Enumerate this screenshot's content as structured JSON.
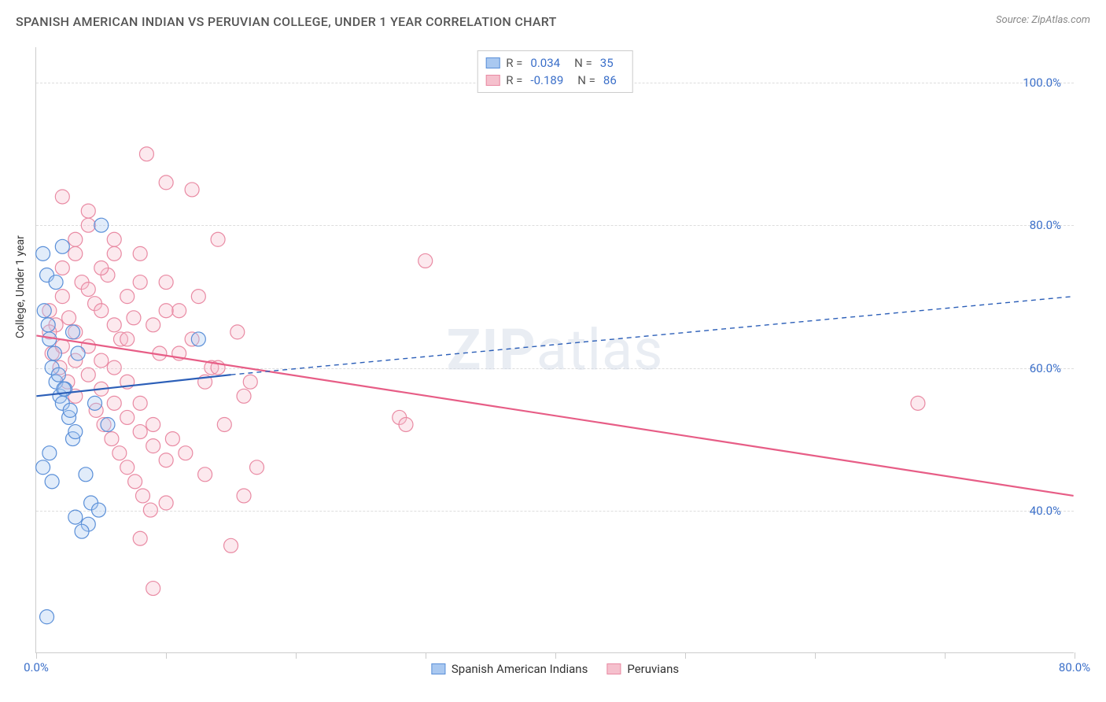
{
  "title": "SPANISH AMERICAN INDIAN VS PERUVIAN COLLEGE, UNDER 1 YEAR CORRELATION CHART",
  "source": "Source: ZipAtlas.com",
  "ylabel": "College, Under 1 year",
  "watermark_bold": "ZIP",
  "watermark_rest": "atlas",
  "chart": {
    "type": "scatter",
    "xlim": [
      0,
      80
    ],
    "ylim": [
      20,
      105
    ],
    "x_ticks": [
      0,
      10,
      20,
      30,
      40,
      50,
      60,
      70,
      80
    ],
    "x_tick_labels": [
      "0.0%",
      "",
      "",
      "",
      "",
      "",
      "",
      "",
      "80.0%"
    ],
    "y_gridlines": [
      40,
      60,
      80,
      100
    ],
    "y_tick_labels": [
      "40.0%",
      "60.0%",
      "80.0%",
      "100.0%"
    ],
    "grid_color": "#dddddd",
    "axis_color": "#cccccc",
    "background_color": "#ffffff",
    "marker_radius": 9,
    "marker_stroke_width": 1.2,
    "fill_opacity": 0.35,
    "series": [
      {
        "name": "Spanish American Indians",
        "color_fill": "#a9c8f0",
        "color_stroke": "#5a8fd8",
        "R": "0.034",
        "N": "35",
        "regression": {
          "x1": 0,
          "y1": 56,
          "x2": 15,
          "y2": 59,
          "extend_x2": 80,
          "extend_y2": 70,
          "color": "#2c5fb8",
          "width": 2.2,
          "dash_extend": "6,5"
        },
        "points": [
          [
            0.5,
            76
          ],
          [
            0.8,
            73
          ],
          [
            1.0,
            64
          ],
          [
            1.2,
            60
          ],
          [
            1.5,
            58
          ],
          [
            1.8,
            56
          ],
          [
            2.0,
            55
          ],
          [
            2.2,
            57
          ],
          [
            2.5,
            53
          ],
          [
            2.8,
            50
          ],
          [
            1.0,
            48
          ],
          [
            0.5,
            46
          ],
          [
            3.0,
            39
          ],
          [
            4.0,
            38
          ],
          [
            5.0,
            80
          ],
          [
            3.5,
            37
          ],
          [
            0.8,
            25
          ],
          [
            2.0,
            77
          ],
          [
            1.5,
            72
          ],
          [
            2.8,
            65
          ],
          [
            3.2,
            62
          ],
          [
            4.5,
            55
          ],
          [
            5.5,
            52
          ],
          [
            1.2,
            44
          ],
          [
            0.6,
            68
          ],
          [
            0.9,
            66
          ],
          [
            1.4,
            62
          ],
          [
            1.7,
            59
          ],
          [
            2.1,
            57
          ],
          [
            2.6,
            54
          ],
          [
            3.0,
            51
          ],
          [
            3.8,
            45
          ],
          [
            4.2,
            41
          ],
          [
            4.8,
            40
          ],
          [
            12.5,
            64
          ]
        ]
      },
      {
        "name": "Peruvians",
        "color_fill": "#f5c0cd",
        "color_stroke": "#e98aa3",
        "R": "-0.189",
        "N": "86",
        "regression": {
          "x1": 0,
          "y1": 64.5,
          "x2": 80,
          "y2": 42,
          "color": "#e75d86",
          "width": 2.2
        },
        "points": [
          [
            1,
            68
          ],
          [
            1.5,
            66
          ],
          [
            2,
            70
          ],
          [
            2.5,
            67
          ],
          [
            3,
            65
          ],
          [
            3.5,
            72
          ],
          [
            4,
            63
          ],
          [
            4.5,
            69
          ],
          [
            5,
            61
          ],
          [
            5.5,
            73
          ],
          [
            6,
            60
          ],
          [
            6.5,
            64
          ],
          [
            7,
            58
          ],
          [
            7.5,
            67
          ],
          [
            8,
            55
          ],
          [
            8.5,
            90
          ],
          [
            9,
            52
          ],
          [
            9.5,
            62
          ],
          [
            10,
            86
          ],
          [
            10.5,
            50
          ],
          [
            11,
            68
          ],
          [
            11.5,
            48
          ],
          [
            12,
            85
          ],
          [
            12.5,
            70
          ],
          [
            13,
            45
          ],
          [
            13.5,
            60
          ],
          [
            14,
            78
          ],
          [
            14.5,
            52
          ],
          [
            15,
            35
          ],
          [
            15.5,
            65
          ],
          [
            16,
            42
          ],
          [
            16.5,
            58
          ],
          [
            17,
            46
          ],
          [
            8,
            36
          ],
          [
            9,
            29
          ],
          [
            10,
            41
          ],
          [
            28,
            53
          ],
          [
            28.5,
            52
          ],
          [
            30,
            75
          ],
          [
            68,
            55
          ],
          [
            2,
            74
          ],
          [
            3,
            76
          ],
          [
            4,
            71
          ],
          [
            5,
            68
          ],
          [
            6,
            66
          ],
          [
            7,
            64
          ],
          [
            1.2,
            62
          ],
          [
            1.8,
            60
          ],
          [
            2.4,
            58
          ],
          [
            3.0,
            56
          ],
          [
            4.6,
            54
          ],
          [
            5.2,
            52
          ],
          [
            5.8,
            50
          ],
          [
            6.4,
            48
          ],
          [
            7.0,
            46
          ],
          [
            7.6,
            44
          ],
          [
            8.2,
            42
          ],
          [
            8.8,
            40
          ],
          [
            1,
            65
          ],
          [
            2,
            63
          ],
          [
            3,
            61
          ],
          [
            4,
            59
          ],
          [
            5,
            57
          ],
          [
            6,
            55
          ],
          [
            7,
            53
          ],
          [
            8,
            51
          ],
          [
            9,
            49
          ],
          [
            10,
            47
          ],
          [
            3,
            78
          ],
          [
            5,
            74
          ],
          [
            7,
            70
          ],
          [
            9,
            66
          ],
          [
            11,
            62
          ],
          [
            13,
            58
          ],
          [
            4,
            80
          ],
          [
            6,
            76
          ],
          [
            8,
            72
          ],
          [
            10,
            68
          ],
          [
            12,
            64
          ],
          [
            14,
            60
          ],
          [
            16,
            56
          ],
          [
            2,
            84
          ],
          [
            4,
            82
          ],
          [
            6,
            78
          ],
          [
            8,
            76
          ],
          [
            10,
            72
          ]
        ]
      }
    ],
    "legend_top": {
      "r_label": "R =",
      "n_label": "N ="
    },
    "legend_bottom_labels": [
      "Spanish American Indians",
      "Peruvians"
    ]
  }
}
